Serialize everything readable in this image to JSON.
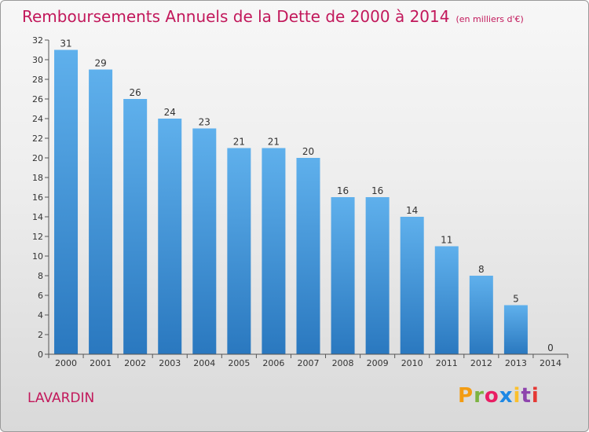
{
  "chart_data": {
    "type": "bar",
    "title": "Remboursements Annuels de la Dette de 2000 à 2014",
    "subtitle": "(en milliers d'€)",
    "categories": [
      "2000",
      "2001",
      "2002",
      "2003",
      "2004",
      "2005",
      "2006",
      "2007",
      "2008",
      "2009",
      "2010",
      "2011",
      "2012",
      "2013",
      "2014"
    ],
    "values": [
      31,
      29,
      26,
      24,
      23,
      21,
      21,
      20,
      16,
      16,
      14,
      11,
      8,
      5,
      0
    ],
    "xlabel": "",
    "ylabel": "",
    "ylim": [
      0,
      32
    ],
    "yticks": [
      0,
      2,
      4,
      6,
      8,
      10,
      12,
      14,
      16,
      18,
      20,
      22,
      24,
      26,
      28,
      30,
      32
    ],
    "grid": false,
    "bar_color_top": "#5fb0ec",
    "bar_color_bottom": "#2a78bf"
  },
  "footer": {
    "commune": "LAVARDIN",
    "brand": "Proxiti",
    "brand_colors": [
      "#f39c12",
      "#7cb342",
      "#e91e63",
      "#1e88e5",
      "#fbc02d",
      "#8e44ad",
      "#e53935"
    ]
  }
}
